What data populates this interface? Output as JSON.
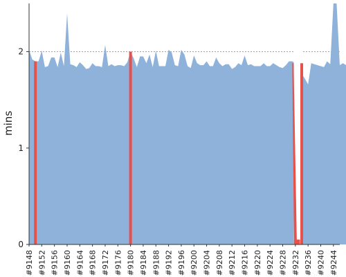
{
  "chart_data": {
    "type": "area",
    "ylabel": "mins",
    "xlabel": "",
    "title": "",
    "ylim": [
      0,
      2.5
    ],
    "yticks": [
      0,
      1,
      2
    ],
    "grid": {
      "horizontal": true,
      "style": "dotted"
    },
    "x_start_build": 9148,
    "x_end_build": 9246,
    "x_tick_labels": [
      "#9148",
      "#9152",
      "#9156",
      "#9160",
      "#9164",
      "#9168",
      "#9172",
      "#9176",
      "#9180",
      "#9184",
      "#9188",
      "#9192",
      "#9196",
      "#9200",
      "#9204",
      "#9208",
      "#9212",
      "#9216",
      "#9220",
      "#9224",
      "#9228",
      "#9232",
      "#9236",
      "#9240",
      "#9244"
    ],
    "colors": {
      "success": "#8eb2da",
      "failure": "#e8504a",
      "grid": "#999999",
      "axis": "#333333"
    },
    "series": [
      {
        "status": "success",
        "values": [
          2.02,
          1.92,
          1.9,
          1.9,
          2.01,
          1.84,
          1.85,
          1.94,
          1.94,
          1.84,
          1.99,
          1.85,
          2.4,
          1.87,
          1.86,
          1.84,
          1.89,
          1.86,
          1.82,
          1.83,
          1.88,
          1.85,
          1.85,
          1.84,
          2.07,
          1.85,
          1.87,
          1.85,
          1.86,
          1.86,
          1.85,
          1.89,
          2.0,
          1.93,
          1.84,
          1.95,
          1.95,
          1.88,
          1.97,
          1.84,
          2.01,
          1.85,
          1.85,
          1.85,
          2.02,
          1.99,
          1.86,
          1.85,
          2.02,
          1.97,
          1.85,
          1.83,
          1.96,
          1.88,
          1.86,
          1.86,
          1.9,
          1.85,
          1.85,
          1.94,
          1.88,
          1.85,
          1.87,
          1.87,
          1.82,
          1.84,
          1.88,
          1.86,
          1.96,
          1.86,
          1.87,
          1.85,
          1.85,
          1.85,
          1.88,
          1.85,
          1.85,
          1.88,
          1.86,
          1.84,
          1.83,
          1.86,
          1.9,
          1.9,
          1.88,
          1.82,
          1.77,
          1.72,
          1.66,
          1.88,
          1.87,
          1.86,
          1.85,
          1.84,
          1.9,
          1.87,
          2.5,
          2.5,
          1.86,
          1.88,
          1.86,
          1.9,
          2.06
        ]
      }
    ],
    "failures": [
      {
        "build": 9150,
        "value": 1.9
      },
      {
        "build": 9180,
        "value": 2.0
      },
      {
        "build": 9232,
        "value": 0.05
      },
      {
        "build": 9233,
        "value": 0.05
      },
      {
        "build": 9234,
        "value": 1.88
      }
    ]
  }
}
